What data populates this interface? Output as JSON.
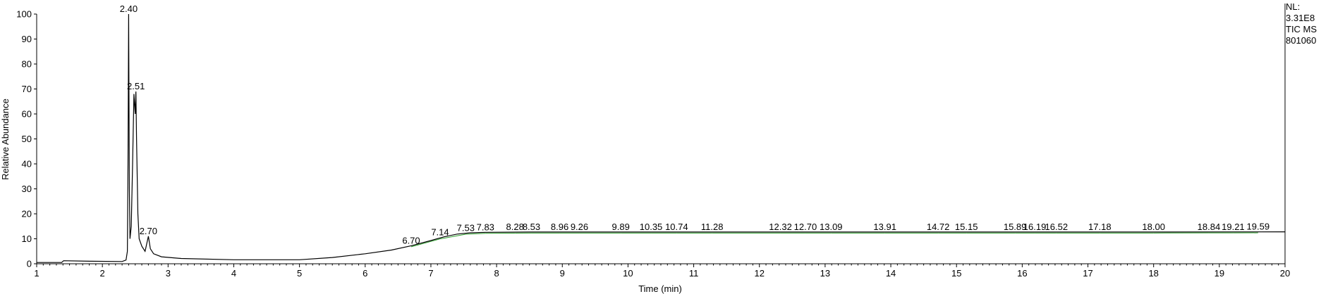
{
  "info": {
    "nl_label": "NL:",
    "nl_value": "3.31E8",
    "trace": "TIC  MS",
    "sample": "801060"
  },
  "chart_data": {
    "type": "line",
    "title": "",
    "xlabel": "Time (min)",
    "ylabel": "Relative Abundance",
    "xlim": [
      1,
      20
    ],
    "ylim": [
      0,
      100
    ],
    "x_ticks": [
      1,
      2,
      3,
      4,
      5,
      6,
      7,
      8,
      9,
      10,
      11,
      12,
      13,
      14,
      15,
      16,
      17,
      18,
      19,
      20
    ],
    "y_ticks": [
      0,
      10,
      20,
      30,
      40,
      50,
      60,
      70,
      80,
      90,
      100
    ],
    "grid": false,
    "line_color": "#000000",
    "baseline_color": "#2ca02c",
    "series": [
      {
        "x": [
          1.0,
          1.38,
          1.41,
          1.8,
          2.3,
          2.36,
          2.38,
          2.39,
          2.4,
          2.41,
          2.42,
          2.44,
          2.46,
          2.48,
          2.5,
          2.51,
          2.52,
          2.54,
          2.56,
          2.6,
          2.65,
          2.7,
          2.73,
          2.78,
          2.9,
          3.2,
          4.0,
          5.0,
          5.5,
          6.0,
          6.4,
          6.7,
          7.0,
          7.2,
          7.4,
          7.6,
          7.83,
          8.5,
          10.0,
          12.0,
          14.0,
          16.0,
          18.0,
          20.0
        ],
        "y": [
          0.5,
          0.5,
          1.2,
          1.0,
          0.9,
          1.5,
          5,
          40,
          100,
          30,
          10,
          15,
          40,
          68,
          60,
          69,
          50,
          20,
          10,
          7,
          5,
          11,
          6,
          4,
          2.8,
          2.1,
          1.6,
          1.6,
          2.5,
          4.0,
          5.5,
          7.2,
          9.3,
          10.8,
          11.9,
          12.4,
          12.6,
          12.7,
          12.7,
          12.7,
          12.7,
          12.7,
          12.7,
          12.8
        ]
      }
    ],
    "peaks": [
      {
        "label": "2.40",
        "x": 2.4,
        "y": 100
      },
      {
        "label": "2.51",
        "x": 2.51,
        "y": 69
      },
      {
        "label": "2.70",
        "x": 2.7,
        "y": 11
      },
      {
        "label": "6.70",
        "x": 6.7,
        "y": 7.2
      },
      {
        "label": "7.14",
        "x": 7.14,
        "y": 10.5
      },
      {
        "label": "7.53",
        "x": 7.53,
        "y": 12.2
      },
      {
        "label": "7.83",
        "x": 7.83,
        "y": 12.6
      },
      {
        "label": "8.28",
        "x": 8.28,
        "y": 12.7
      },
      {
        "label": "8.53",
        "x": 8.53,
        "y": 12.7
      },
      {
        "label": "8.96",
        "x": 8.96,
        "y": 12.7
      },
      {
        "label": "9.26",
        "x": 9.26,
        "y": 12.7
      },
      {
        "label": "9.89",
        "x": 9.89,
        "y": 12.7
      },
      {
        "label": "10.35",
        "x": 10.35,
        "y": 12.7
      },
      {
        "label": "10.74",
        "x": 10.74,
        "y": 12.7
      },
      {
        "label": "11.28",
        "x": 11.28,
        "y": 12.7
      },
      {
        "label": "12.32",
        "x": 12.32,
        "y": 12.7
      },
      {
        "label": "12.70",
        "x": 12.7,
        "y": 12.7
      },
      {
        "label": "13.09",
        "x": 13.09,
        "y": 12.7
      },
      {
        "label": "13.91",
        "x": 13.91,
        "y": 12.7
      },
      {
        "label": "14.72",
        "x": 14.72,
        "y": 12.7
      },
      {
        "label": "15.15",
        "x": 15.15,
        "y": 12.7
      },
      {
        "label": "15.89",
        "x": 15.89,
        "y": 12.7
      },
      {
        "label": "16.19",
        "x": 16.19,
        "y": 12.7
      },
      {
        "label": "16.52",
        "x": 16.52,
        "y": 12.7
      },
      {
        "label": "17.18",
        "x": 17.18,
        "y": 12.7
      },
      {
        "label": "18.00",
        "x": 18.0,
        "y": 12.7
      },
      {
        "label": "18.84",
        "x": 18.84,
        "y": 12.7
      },
      {
        "label": "19.21",
        "x": 19.21,
        "y": 12.7
      },
      {
        "label": "19.59",
        "x": 19.59,
        "y": 12.8
      }
    ]
  }
}
